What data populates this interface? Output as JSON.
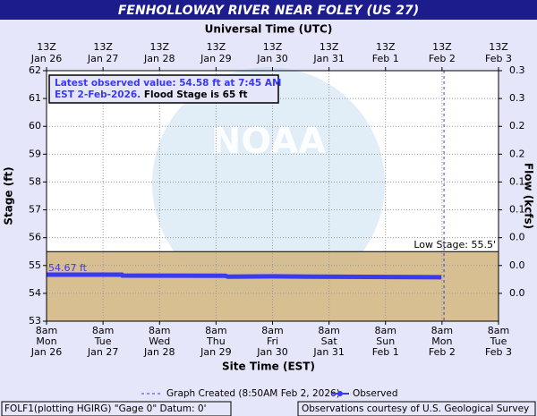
{
  "chart_data": {
    "type": "line",
    "title": "FENHOLLOWAY RIVER NEAR FOLEY (US 27)",
    "top_axis_label": "Universal Time (UTC)",
    "x_axis_label": "Site Time (EST)",
    "y_axis_label": "Stage (ft)",
    "y2_axis_label": "Flow (kcfs)",
    "watermark": "NOAA",
    "xlim": [
      "2026-01-26T08:00",
      "2026-02-03T08:00"
    ],
    "bottom_ticks": [
      {
        "value": "2026-01-26T08:00",
        "time": "8am",
        "day": "Mon",
        "date": "Jan 26"
      },
      {
        "value": "2026-01-27T08:00",
        "time": "8am",
        "day": "Tue",
        "date": "Jan 27"
      },
      {
        "value": "2026-01-28T08:00",
        "time": "8am",
        "day": "Wed",
        "date": "Jan 28"
      },
      {
        "value": "2026-01-29T08:00",
        "time": "8am",
        "day": "Thu",
        "date": "Jan 29"
      },
      {
        "value": "2026-01-30T08:00",
        "time": "8am",
        "day": "Fri",
        "date": "Jan 30"
      },
      {
        "value": "2026-01-31T08:00",
        "time": "8am",
        "day": "Sat",
        "date": "Jan 31"
      },
      {
        "value": "2026-02-01T08:00",
        "time": "8am",
        "day": "Sun",
        "date": "Feb  1"
      },
      {
        "value": "2026-02-02T08:00",
        "time": "8am",
        "day": "Mon",
        "date": "Feb 2"
      },
      {
        "value": "2026-02-03T08:00",
        "time": "8am",
        "day": "Tue",
        "date": "Feb 3"
      }
    ],
    "top_ticks": [
      {
        "value": "2026-01-26T08:00",
        "time": "13Z",
        "date": "Jan 26"
      },
      {
        "value": "2026-01-27T08:00",
        "time": "13Z",
        "date": "Jan 27"
      },
      {
        "value": "2026-01-28T08:00",
        "time": "13Z",
        "date": "Jan 28"
      },
      {
        "value": "2026-01-29T08:00",
        "time": "13Z",
        "date": "Jan 29"
      },
      {
        "value": "2026-01-30T08:00",
        "time": "13Z",
        "date": "Jan 30"
      },
      {
        "value": "2026-01-31T08:00",
        "time": "13Z",
        "date": "Jan 31"
      },
      {
        "value": "2026-02-01T08:00",
        "time": "13Z",
        "date": "Feb  1"
      },
      {
        "value": "2026-02-02T08:00",
        "time": "13Z",
        "date": "Feb  2"
      },
      {
        "value": "2026-02-03T08:00",
        "time": "13Z",
        "date": "Feb  3"
      }
    ],
    "ylim": [
      53,
      62
    ],
    "yticks": [
      53,
      54,
      55,
      56,
      57,
      58,
      59,
      60,
      61,
      62
    ],
    "y2ticks": [
      {
        "value": 0.3,
        "label": "0.3"
      },
      {
        "value": 0.25,
        "label": "0.3"
      },
      {
        "value": 0.2,
        "label": "0.2"
      },
      {
        "value": 0.15,
        "label": "0.2"
      },
      {
        "value": 0.1,
        "label": "0.1"
      },
      {
        "value": 0.05,
        "label": "0.1"
      },
      {
        "value": 0.02,
        "label": "0.0"
      },
      {
        "value": 0.01,
        "label": "0.0"
      },
      {
        "value": 0.0,
        "label": "0.0"
      }
    ],
    "grid": true,
    "low_stage": 55.5,
    "low_stage_label": "Low Stage: 55.5'",
    "series": [
      {
        "name": "Observed",
        "color": "#3a3af0",
        "x": [
          "2026-01-26T08:00",
          "2026-01-27T16:00",
          "2026-01-27T16:15",
          "2026-01-29T12:00",
          "2026-01-29T13:00",
          "2026-01-30T08:00",
          "2026-01-31T00:00",
          "2026-02-02T07:45"
        ],
        "values": [
          54.67,
          54.67,
          54.64,
          54.63,
          54.6,
          54.61,
          54.6,
          54.58
        ],
        "start_label": "54.67 ft"
      }
    ],
    "created": {
      "x": "2026-02-02T08:50",
      "label": "Graph Created (8:50AM Feb 2, 2026)"
    },
    "info_box": {
      "line1": "Latest observed value: 54.58 ft at 7:45 AM",
      "line2": "EST 2-Feb-2026.",
      "line2b": " Flood Stage is 65 ft"
    },
    "footer_left": "FOLF1(plotting HGIRG) \"Gage 0\" Datum: 0'",
    "footer_right": "Observations courtesy of U.S. Geological Survey"
  }
}
